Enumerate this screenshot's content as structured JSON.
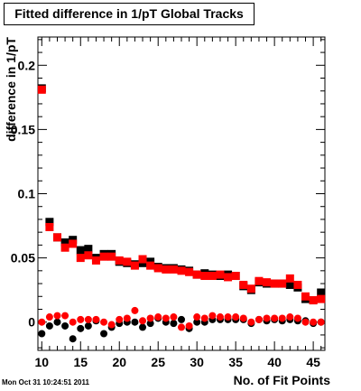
{
  "title": "Fitted difference in 1/pT  Global Tracks",
  "timestamp": "Mon Oct 31 10:24:51 2011",
  "chart_data": {
    "type": "scatter",
    "title": "Fitted difference in 1/pT  Global Tracks",
    "xlabel": "No. of Fit Points",
    "ylabel": "difference in 1/pT",
    "xlim": [
      9.5,
      46.5
    ],
    "ylim": [
      -0.022,
      0.222
    ],
    "xticks": [
      10,
      15,
      20,
      25,
      30,
      35,
      40,
      45
    ],
    "yticks": [
      0,
      0.05,
      0.1,
      0.15,
      0.2
    ],
    "ytick_labels": [
      "0",
      "0.05",
      "0.1",
      "0.15",
      "0.2"
    ],
    "grid": false,
    "series": [
      {
        "marker": "square",
        "color": "#000000",
        "x": [
          10,
          11,
          12,
          13,
          14,
          15,
          16,
          17,
          18,
          19,
          20,
          21,
          22,
          23,
          24,
          25,
          26,
          27,
          28,
          29,
          30,
          31,
          32,
          33,
          34,
          35,
          36,
          37,
          38,
          39,
          40,
          41,
          42,
          43,
          44,
          45,
          46
        ],
        "y": [
          0.182,
          0.078,
          0.066,
          0.062,
          0.064,
          0.056,
          0.057,
          0.05,
          0.053,
          0.053,
          0.047,
          0.046,
          0.045,
          0.046,
          0.047,
          0.043,
          0.042,
          0.042,
          0.041,
          0.04,
          0.037,
          0.038,
          0.037,
          0.036,
          0.037,
          0.036,
          0.028,
          0.025,
          0.031,
          0.03,
          0.03,
          0.03,
          0.029,
          0.027,
          0.018,
          0.017,
          0.023
        ]
      },
      {
        "marker": "square",
        "color": "#ff0000",
        "x": [
          10,
          11,
          12,
          13,
          14,
          15,
          16,
          17,
          18,
          19,
          20,
          21,
          22,
          23,
          24,
          25,
          26,
          27,
          28,
          29,
          30,
          31,
          32,
          33,
          34,
          35,
          36,
          37,
          38,
          39,
          40,
          41,
          42,
          43,
          44,
          45,
          46
        ],
        "y": [
          0.181,
          0.074,
          0.066,
          0.058,
          0.061,
          0.05,
          0.052,
          0.048,
          0.051,
          0.051,
          0.048,
          0.047,
          0.044,
          0.049,
          0.044,
          0.042,
          0.041,
          0.041,
          0.04,
          0.039,
          0.037,
          0.036,
          0.036,
          0.037,
          0.035,
          0.036,
          0.029,
          0.026,
          0.032,
          0.031,
          0.03,
          0.03,
          0.034,
          0.029,
          0.02,
          0.017,
          0.018
        ]
      },
      {
        "marker": "circle",
        "color": "#000000",
        "x": [
          10,
          11,
          12,
          13,
          14,
          15,
          16,
          17,
          18,
          19,
          20,
          21,
          22,
          23,
          24,
          25,
          26,
          27,
          28,
          29,
          30,
          31,
          32,
          33,
          34,
          35,
          36,
          37,
          38,
          39,
          40,
          41,
          42,
          43,
          44,
          45,
          46
        ],
        "y": [
          -0.009,
          -0.003,
          0.0,
          -0.003,
          -0.013,
          -0.005,
          -0.003,
          0.001,
          -0.009,
          -0.004,
          -0.001,
          0.0,
          0.0,
          -0.004,
          -0.001,
          0.003,
          0.0,
          -0.001,
          0.002,
          -0.005,
          0.0,
          0.0,
          0.002,
          0.002,
          0.002,
          0.002,
          0.002,
          -0.001,
          0.002,
          0.001,
          0.002,
          0.001,
          0.002,
          0.001,
          0.001,
          -0.001,
          0.0
        ]
      },
      {
        "marker": "circle",
        "color": "#ff0000",
        "x": [
          10,
          11,
          12,
          13,
          14,
          15,
          16,
          17,
          18,
          19,
          20,
          21,
          22,
          23,
          24,
          25,
          26,
          27,
          28,
          29,
          30,
          31,
          32,
          33,
          34,
          35,
          36,
          37,
          38,
          39,
          40,
          41,
          42,
          43,
          44,
          45,
          46
        ],
        "y": [
          0.0,
          0.004,
          0.005,
          0.005,
          0.0,
          0.002,
          0.002,
          0.002,
          0.0,
          -0.002,
          0.002,
          0.003,
          0.009,
          0.001,
          0.003,
          0.004,
          0.003,
          0.004,
          -0.004,
          -0.003,
          0.004,
          0.003,
          0.005,
          0.004,
          0.004,
          0.004,
          0.003,
          0.0,
          0.002,
          0.003,
          0.003,
          0.003,
          0.004,
          0.003,
          0.0,
          0.0,
          0.0
        ]
      }
    ]
  }
}
